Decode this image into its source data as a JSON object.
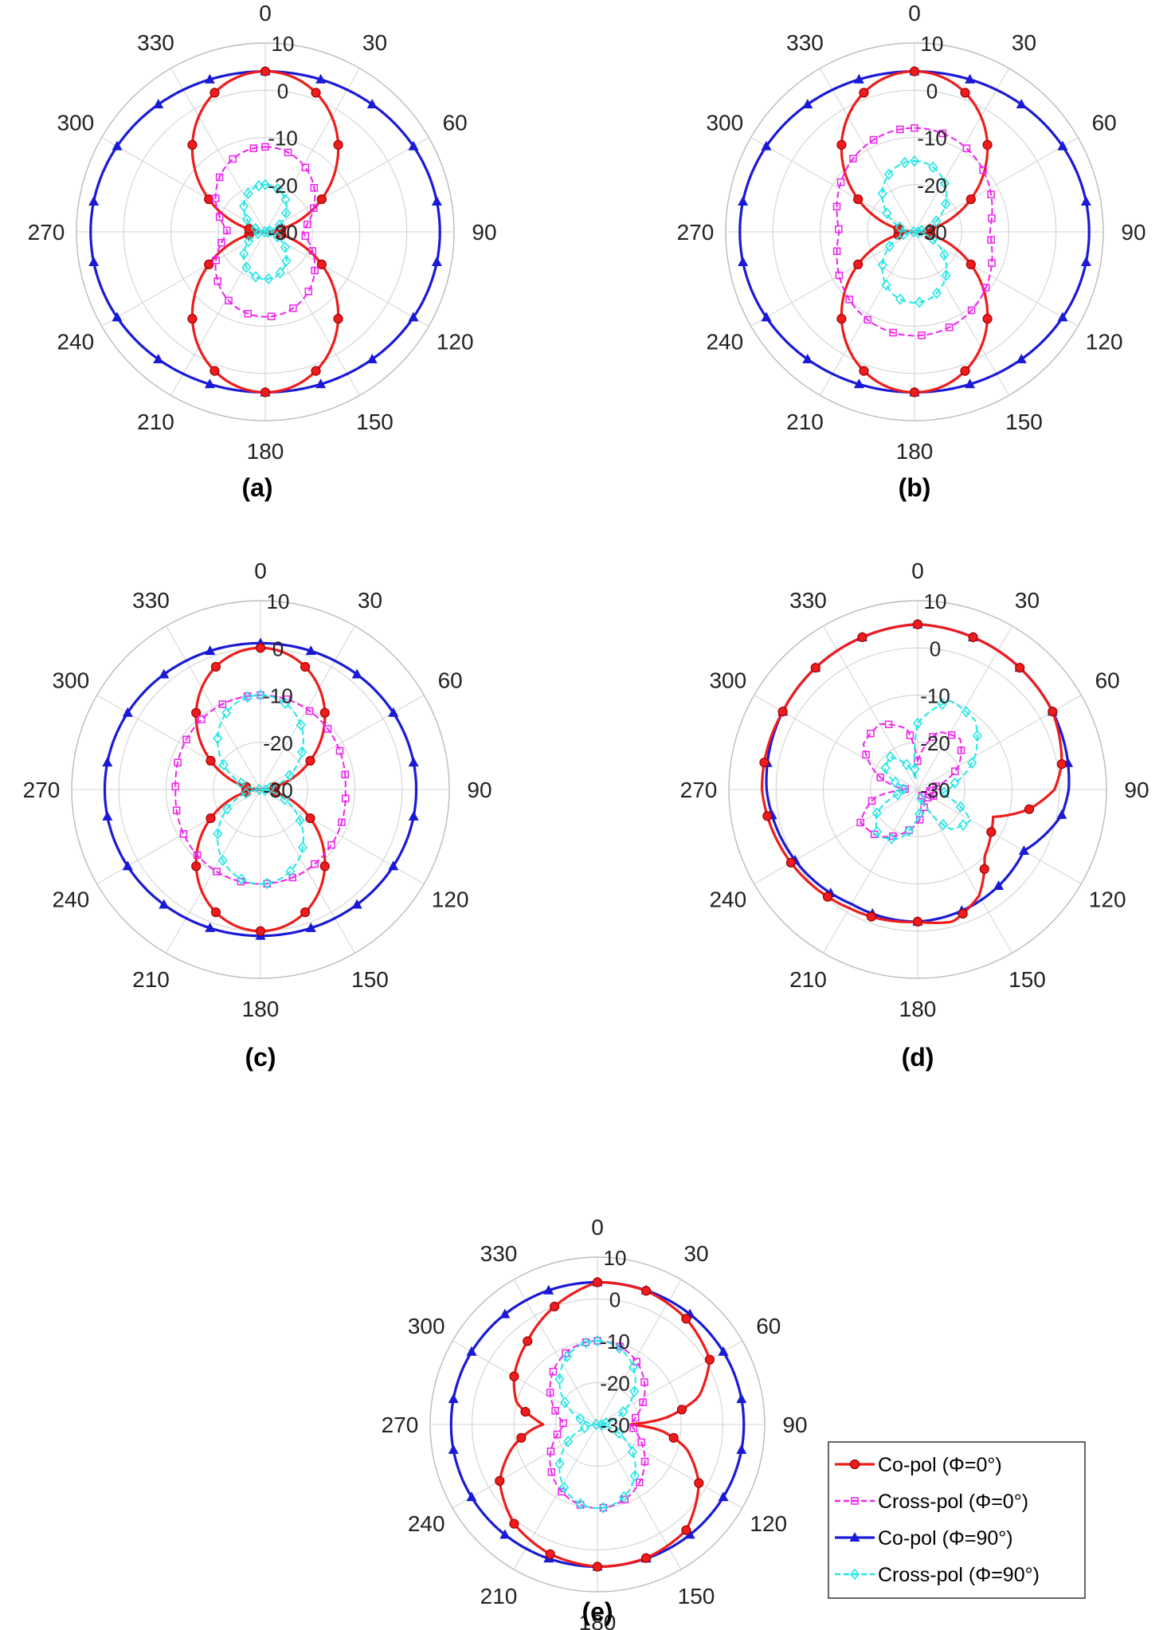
{
  "chart_data": [
    {
      "type": "polar",
      "panel_label": "(a)",
      "r_ticks": [
        "10",
        "0",
        "-10",
        "-20",
        "-30"
      ],
      "theta_ticks": [
        "0",
        "30",
        "60",
        "90",
        "120",
        "150",
        "180",
        "210",
        "240",
        "270",
        "300",
        "330"
      ],
      "rlim": [
        -30,
        10
      ],
      "theta_zero": "top",
      "theta_direction": "clockwise",
      "series": [
        {
          "type": "copol0",
          "form": "dipole",
          "peak_db": 4,
          "null_db": -30
        },
        {
          "type": "xpol0",
          "form": "dipole",
          "peak_db": -12,
          "null_db": -22
        },
        {
          "type": "copol90",
          "form": "ellipse",
          "peak_db": 4,
          "side_db": 7
        },
        {
          "type": "xpol90",
          "form": "dipole",
          "peak_db": -20,
          "null_db": -30
        }
      ]
    },
    {
      "type": "polar",
      "panel_label": "(b)",
      "r_ticks": [
        "10",
        "0",
        "-10",
        "-20",
        "-30"
      ],
      "theta_ticks": [
        "0",
        "30",
        "60",
        "90",
        "120",
        "150",
        "180",
        "210",
        "240",
        "270",
        "300",
        "330"
      ],
      "rlim": [
        -30,
        10
      ],
      "theta_zero": "top",
      "theta_direction": "clockwise",
      "series": [
        {
          "type": "copol0",
          "form": "dipole",
          "peak_db": 4,
          "null_db": -30
        },
        {
          "type": "xpol0",
          "form": "dipole",
          "peak_db": -8,
          "null_db": -14
        },
        {
          "type": "copol90",
          "form": "ellipse",
          "peak_db": 4,
          "side_db": 7
        },
        {
          "type": "xpol90",
          "form": "dipole",
          "peak_db": -15,
          "null_db": -30
        }
      ]
    },
    {
      "type": "polar",
      "panel_label": "(c)",
      "r_ticks": [
        "10",
        "0",
        "-10",
        "-20",
        "-30"
      ],
      "theta_ticks": [
        "0",
        "30",
        "60",
        "90",
        "120",
        "150",
        "180",
        "210",
        "240",
        "270",
        "300",
        "330"
      ],
      "rlim": [
        -30,
        10
      ],
      "theta_zero": "top",
      "theta_direction": "clockwise",
      "series": [
        {
          "type": "copol0",
          "form": "dipole",
          "peak_db": 0,
          "null_db": -30
        },
        {
          "type": "xpol0",
          "form": "dipole",
          "peak_db": -10,
          "null_db": -12
        },
        {
          "type": "copol90",
          "form": "ellipse",
          "peak_db": 1,
          "side_db": 3
        },
        {
          "type": "xpol90",
          "form": "dipole",
          "peak_db": -10,
          "null_db": -30
        }
      ]
    },
    {
      "type": "polar",
      "panel_label": "(d)",
      "r_ticks": [
        "10",
        "0",
        "-10",
        "-20",
        "-30"
      ],
      "theta_ticks": [
        "0",
        "30",
        "60",
        "90",
        "120",
        "150",
        "180",
        "210",
        "240",
        "270",
        "300",
        "330"
      ],
      "rlim": [
        -30,
        10
      ],
      "theta_zero": "top",
      "theta_direction": "clockwise",
      "series": [
        {
          "type": "copol0",
          "form": "points",
          "theta": [
            0,
            30,
            60,
            80,
            90,
            100,
            110,
            120,
            135,
            150,
            165,
            180,
            210,
            240,
            270,
            300,
            330
          ],
          "r": [
            5,
            4,
            3,
            1,
            -1,
            -6,
            -13,
            -12,
            -10,
            -4,
            -1,
            -2,
            -1,
            1,
            3,
            3,
            4
          ]
        },
        {
          "type": "xpol0",
          "form": "points",
          "theta": [
            0,
            20,
            40,
            60,
            80,
            90,
            100,
            120,
            140,
            160,
            180,
            200,
            220,
            240,
            260,
            270,
            290,
            310,
            330,
            350
          ],
          "r": [
            -24,
            -17,
            -16,
            -20,
            -26,
            -28,
            -27,
            -26,
            -29,
            -26,
            -23,
            -20,
            -17,
            -16,
            -21,
            -28,
            -21,
            -15,
            -14,
            -17
          ]
        },
        {
          "type": "copol90",
          "form": "points",
          "theta": [
            0,
            30,
            60,
            90,
            100,
            120,
            150,
            180,
            210,
            240,
            270,
            300,
            330
          ],
          "r": [
            5,
            4,
            3,
            2,
            1,
            -4,
            -3,
            -2,
            -2,
            0,
            2,
            3,
            4
          ]
        },
        {
          "type": "xpol90",
          "form": "points",
          "theta": [
            0,
            20,
            40,
            60,
            80,
            100,
            120,
            140,
            160,
            180,
            200,
            220,
            240,
            260,
            280,
            300,
            320,
            340,
            350
          ],
          "r": [
            -16,
            -10,
            -11,
            -16,
            -22,
            -25,
            -17,
            -19,
            -28,
            -24,
            -19,
            -17,
            -20,
            -27,
            -27,
            -22,
            -21,
            -25,
            -28
          ]
        }
      ]
    },
    {
      "type": "polar",
      "panel_label": "(e)",
      "r_ticks": [
        "10",
        "0",
        "-10",
        "-20",
        "-30"
      ],
      "theta_ticks": [
        "0",
        "30",
        "60",
        "90",
        "120",
        "150",
        "180",
        "210",
        "240",
        "270",
        "300",
        "330"
      ],
      "rlim": [
        -30,
        10
      ],
      "theta_zero": "top",
      "theta_direction": "clockwise",
      "series": [
        {
          "type": "copol0",
          "form": "points",
          "theta": [
            0,
            20,
            40,
            60,
            75,
            85,
            90,
            95,
            105,
            120,
            140,
            160,
            180,
            200,
            220,
            240,
            255,
            265,
            270,
            275,
            285,
            300,
            320,
            340
          ],
          "r": [
            4,
            4,
            3,
            1,
            -5,
            -14,
            -22,
            -15,
            -8,
            -2,
            3,
            4,
            4,
            3,
            1,
            -3,
            -9,
            -14,
            -17,
            -15,
            -10,
            -7,
            -4,
            0
          ]
        },
        {
          "type": "xpol0",
          "form": "dipole",
          "peak_db": -10,
          "null_db": -22
        },
        {
          "type": "copol90",
          "form": "ellipse",
          "peak_db": 4,
          "side_db": 5
        },
        {
          "type": "xpol90",
          "form": "dipole",
          "peak_db": -10,
          "null_db": -30
        }
      ]
    }
  ],
  "legend": {
    "items": [
      {
        "key": "copol0",
        "label": "Co-pol (Φ=0°)",
        "color": "#ee1c1c",
        "marker": "circle",
        "dash": "solid"
      },
      {
        "key": "xpol0",
        "label": "Cross-pol (Φ=0°)",
        "color": "#ee22ee",
        "marker": "square",
        "dash": "dashed"
      },
      {
        "key": "copol90",
        "label": "Co-pol (Φ=90°)",
        "color": "#1a1ad6",
        "marker": "triangle",
        "dash": "solid"
      },
      {
        "key": "xpol90",
        "label": "Cross-pol (Φ=90°)",
        "color": "#22e6e6",
        "marker": "diamond",
        "dash": "dashed"
      }
    ]
  }
}
